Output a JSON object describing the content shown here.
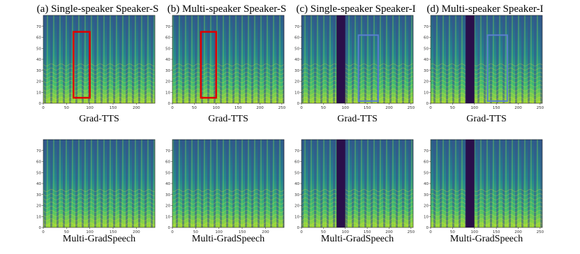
{
  "figure": {
    "columns": [
      {
        "title": "(a) Single-speaker Speaker-S",
        "plots": [
          {
            "caption": "Grad-TTS",
            "xlim": [
              0,
              240
            ],
            "ylim": [
              0,
              80
            ],
            "xticks": [
              0,
              50,
              100,
              150,
              200
            ],
            "yticks": [
              0,
              10,
              20,
              30,
              40,
              50,
              60,
              70
            ]
          },
          {
            "caption": "Multi-GradSpeech",
            "xlim": [
              0,
              240
            ],
            "ylim": [
              0,
              80
            ],
            "xticks": [
              0,
              50,
              100,
              150,
              200
            ],
            "yticks": [
              0,
              10,
              20,
              30,
              40,
              50,
              60,
              70
            ]
          }
        ]
      },
      {
        "title": "(b) Multi-speaker Speaker-S",
        "plots": [
          {
            "caption": "Grad-TTS",
            "xlim": [
              0,
              255
            ],
            "ylim": [
              0,
              80
            ],
            "xticks": [
              0,
              50,
              100,
              150,
              200,
              250
            ],
            "yticks": [
              0,
              10,
              20,
              30,
              40,
              50,
              60,
              70
            ]
          },
          {
            "caption": "Multi-GradSpeech",
            "xlim": [
              0,
              240
            ],
            "ylim": [
              0,
              80
            ],
            "xticks": [
              0,
              50,
              100,
              150,
              200
            ],
            "yticks": [
              0,
              10,
              20,
              30,
              40,
              50,
              60,
              70
            ]
          }
        ]
      },
      {
        "title": "(c) Single-speaker Speaker-I",
        "plots": [
          {
            "caption": "Grad-TTS",
            "xlim": [
              0,
              255
            ],
            "ylim": [
              0,
              80
            ],
            "xticks": [
              0,
              50,
              100,
              150,
              200,
              250
            ],
            "yticks": [
              0,
              10,
              20,
              30,
              40,
              50,
              60,
              70
            ]
          },
          {
            "caption": "Multi-GradSpeech",
            "xlim": [
              0,
              255
            ],
            "ylim": [
              0,
              80
            ],
            "xticks": [
              0,
              50,
              100,
              150,
              200,
              250
            ],
            "yticks": [
              0,
              10,
              20,
              30,
              40,
              50,
              60,
              70
            ]
          }
        ]
      },
      {
        "title": "(d) Multi-speaker Speaker-I",
        "plots": [
          {
            "caption": "Grad-TTS",
            "xlim": [
              0,
              255
            ],
            "ylim": [
              0,
              80
            ],
            "xticks": [
              0,
              50,
              100,
              150,
              200,
              250
            ],
            "yticks": [
              0,
              10,
              20,
              30,
              40,
              50,
              60,
              70
            ]
          },
          {
            "caption": "Multi-GradSpeech",
            "xlim": [
              0,
              255
            ],
            "ylim": [
              0,
              80
            ],
            "xticks": [
              0,
              50,
              100,
              150,
              200,
              250
            ],
            "yticks": [
              0,
              10,
              20,
              30,
              40,
              50,
              60,
              70
            ]
          }
        ]
      }
    ]
  }
}
